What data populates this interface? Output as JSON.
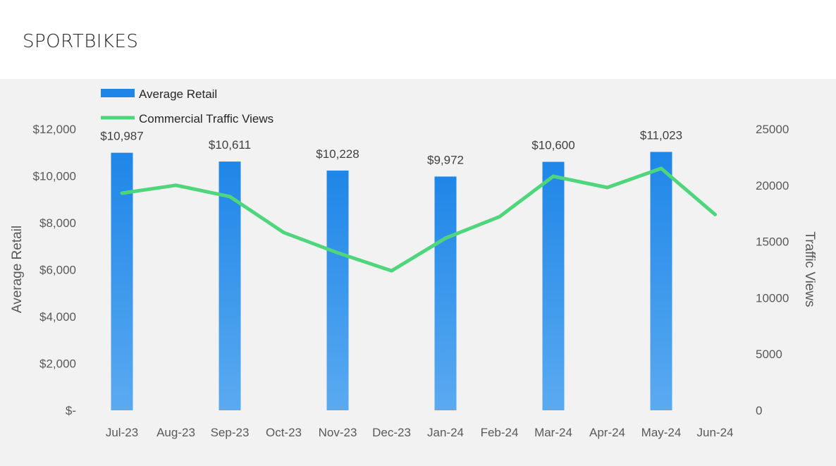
{
  "page": {
    "title": "SPORTBIKES"
  },
  "colors": {
    "panel_background": "#f2f2f2",
    "bar_top": "#1f86e8",
    "bar_bottom": "#5aaaf0",
    "line": "#4fd67c",
    "text": "#595959"
  },
  "chart_data": {
    "type": "bar",
    "title": "",
    "categories": [
      "Jul-23",
      "Aug-23",
      "Sep-23",
      "Oct-23",
      "Nov-23",
      "Dec-23",
      "Jan-24",
      "Feb-24",
      "Mar-24",
      "Apr-24",
      "May-24",
      "Jun-24"
    ],
    "series": [
      {
        "name": "Average Retail",
        "type": "bar",
        "axis": "left",
        "values": [
          10987,
          null,
          10611,
          null,
          10228,
          null,
          9972,
          null,
          10600,
          null,
          11023,
          null
        ],
        "data_labels": [
          "$10,987",
          "",
          "$10,611",
          "",
          "$10,228",
          "",
          "$9,972",
          "",
          "$10,600",
          "",
          "$11,023",
          ""
        ]
      },
      {
        "name": "Commercial Traffic Views",
        "type": "line",
        "axis": "right",
        "values": [
          19300,
          20000,
          19000,
          15800,
          14000,
          12400,
          15300,
          17200,
          20800,
          19800,
          21500,
          17400
        ]
      }
    ],
    "ylabel": "Average Retail",
    "y2label": "Traffic Views",
    "ylim": [
      0,
      12000
    ],
    "y2lim": [
      0,
      25000
    ],
    "yticks": [
      "$-",
      "$2,000",
      "$4,000",
      "$6,000",
      "$8,000",
      "$10,000",
      "$12,000"
    ],
    "y2ticks": [
      "0",
      "5000",
      "10000",
      "15000",
      "20000",
      "25000"
    ],
    "legend_position": "top-left",
    "grid": false
  }
}
